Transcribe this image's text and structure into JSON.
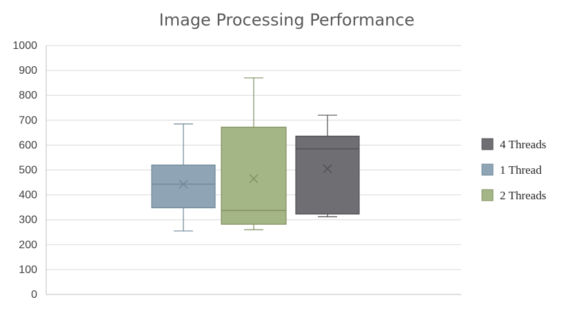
{
  "chart_data": {
    "type": "box",
    "title": "Image Processing Performance",
    "ylim": [
      0,
      1000
    ],
    "ytick_step": 100,
    "grid": true,
    "legend_position": "right",
    "series": [
      {
        "name": "1 Thread",
        "color": "#8fa5b6",
        "edge": "#6f8797",
        "min": 255,
        "q1": 348,
        "median": 443,
        "mean": 443,
        "q3": 520,
        "max": 685
      },
      {
        "name": "2 Threads",
        "color": "#a4b586",
        "edge": "#7f8f5f",
        "min": 260,
        "q1": 282,
        "median": 337,
        "mean": 465,
        "q3": 672,
        "max": 870
      },
      {
        "name": "4 Threads",
        "color": "#6f6e73",
        "edge": "#505054",
        "min": 312,
        "q1": 323,
        "median": 585,
        "mean": 505,
        "q3": 636,
        "max": 720
      }
    ],
    "legend_order": [
      "4 Threads",
      "1 Thread",
      "2 Threads"
    ]
  }
}
